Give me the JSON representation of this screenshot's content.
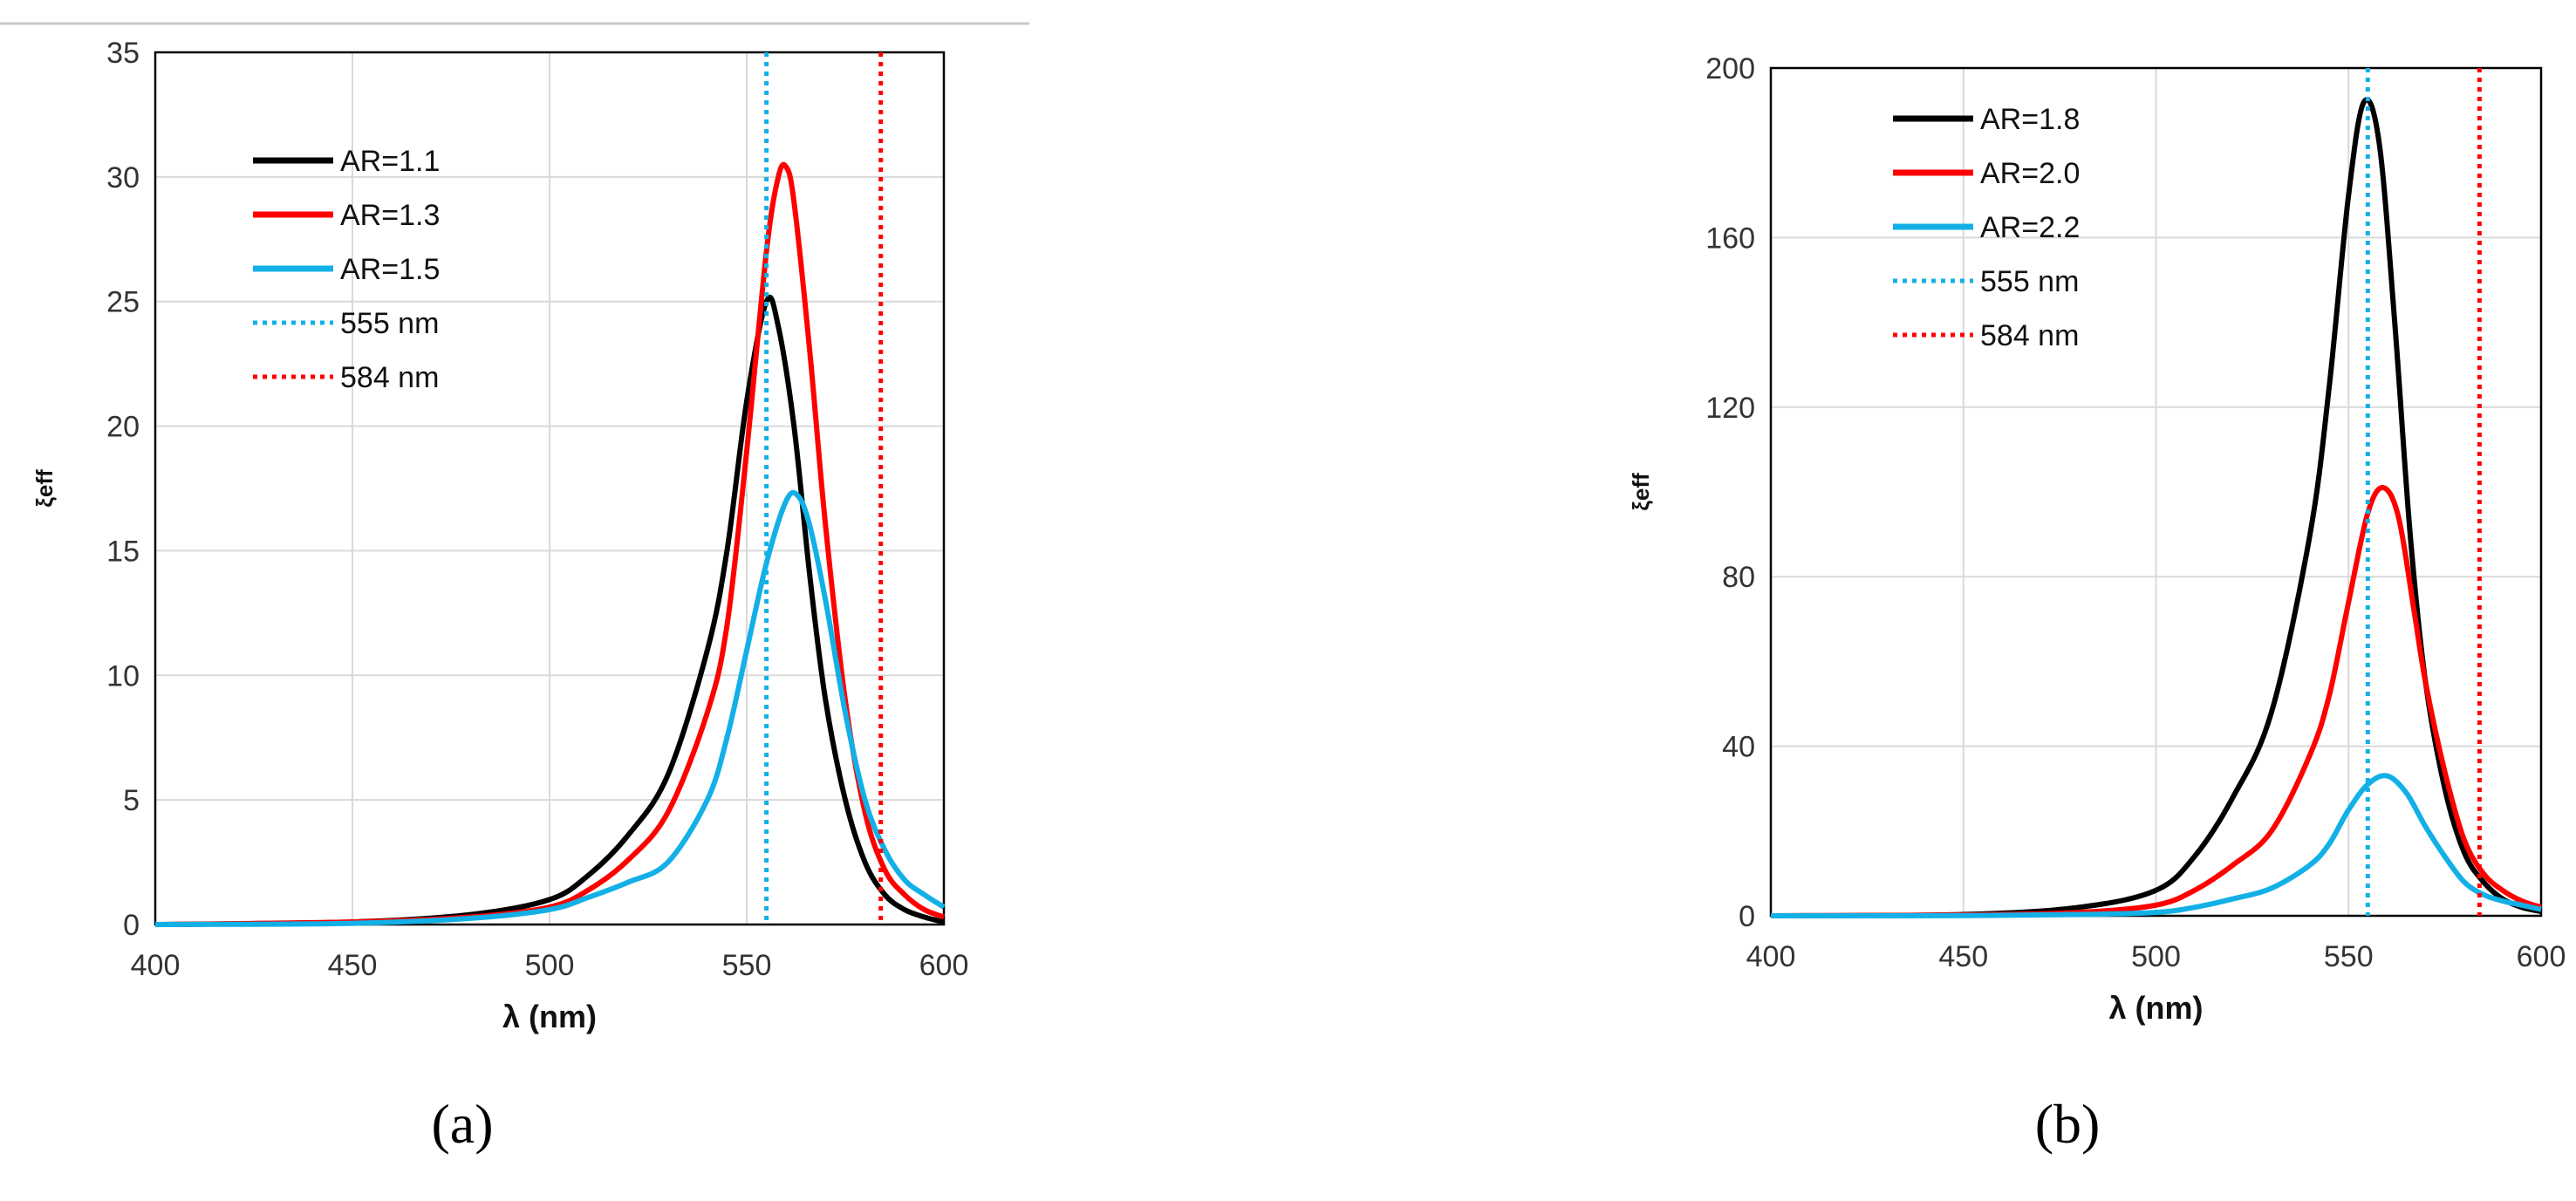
{
  "chart_data": [
    {
      "panel": "a",
      "panel_label": "(a)",
      "type": "line",
      "xlabel": "λ (nm)",
      "ylabel": "ξeff",
      "xlim": [
        400,
        600
      ],
      "ylim": [
        0,
        35
      ],
      "xticks": [
        400,
        450,
        500,
        550,
        600
      ],
      "yticks": [
        0,
        5,
        10,
        15,
        20,
        25,
        30,
        35
      ],
      "grid": true,
      "legend_position": "top-left",
      "series": [
        {
          "name": "AR=1.1",
          "color": "#000000",
          "style": "solid",
          "x": [
            400,
            450,
            480,
            500,
            510,
            520,
            530,
            540,
            545,
            550,
            555,
            558,
            562,
            566,
            570,
            575,
            580,
            585,
            590,
            595,
            600
          ],
          "y": [
            0,
            0.1,
            0.4,
            1.0,
            2.0,
            3.6,
            6.0,
            11,
            15,
            21,
            25,
            24,
            20,
            14,
            9,
            5,
            2.5,
            1.2,
            0.6,
            0.3,
            0.1
          ]
        },
        {
          "name": "AR=1.3",
          "color": "#ff0000",
          "style": "solid",
          "x": [
            400,
            450,
            480,
            500,
            510,
            520,
            530,
            540,
            545,
            550,
            555,
            558,
            560,
            562,
            566,
            570,
            575,
            580,
            585,
            590,
            595,
            600
          ],
          "y": [
            0,
            0.1,
            0.3,
            0.7,
            1.4,
            2.6,
            4.5,
            8.5,
            12,
            19,
            27,
            30,
            30.4,
            29,
            23,
            16,
            9,
            4.5,
            2.2,
            1.2,
            0.6,
            0.3
          ]
        },
        {
          "name": "AR=1.5",
          "color": "#12b0e6",
          "style": "solid",
          "x": [
            400,
            450,
            480,
            500,
            510,
            520,
            530,
            540,
            545,
            550,
            555,
            560,
            563,
            566,
            570,
            575,
            580,
            585,
            590,
            595,
            600
          ],
          "y": [
            0,
            0.05,
            0.25,
            0.6,
            1.1,
            1.7,
            2.5,
            5,
            7.5,
            11,
            14.5,
            17,
            17.2,
            16,
            13,
            8.5,
            5,
            3,
            1.8,
            1.2,
            0.7
          ]
        },
        {
          "name": "555 nm",
          "color": "#12b0e6",
          "style": "dotted",
          "vline": 555
        },
        {
          "name": "584 nm",
          "color": "#ff0000",
          "style": "dotted",
          "vline": 584
        }
      ]
    },
    {
      "panel": "b",
      "panel_label": "(b)",
      "type": "line",
      "xlabel": "λ (nm)",
      "ylabel": "ξeff",
      "xlim": [
        400,
        600
      ],
      "ylim": [
        0,
        200
      ],
      "xticks": [
        400,
        450,
        500,
        550,
        600
      ],
      "yticks": [
        0,
        40,
        80,
        120,
        160,
        200
      ],
      "grid": true,
      "legend_position": "top-left",
      "series": [
        {
          "name": "AR=1.8",
          "color": "#000000",
          "style": "solid",
          "x": [
            400,
            450,
            480,
            500,
            510,
            520,
            530,
            540,
            545,
            550,
            554,
            558,
            562,
            566,
            570,
            575,
            580,
            585,
            590,
            595,
            600
          ],
          "y": [
            0,
            0.3,
            2,
            6,
            14,
            28,
            48,
            90,
            125,
            170,
            192,
            182,
            140,
            90,
            55,
            30,
            15,
            8,
            4,
            2,
            1
          ]
        },
        {
          "name": "AR=2.0",
          "color": "#ff0000",
          "style": "solid",
          "x": [
            400,
            450,
            480,
            500,
            510,
            520,
            530,
            540,
            545,
            550,
            555,
            559,
            563,
            567,
            570,
            575,
            580,
            585,
            590,
            595,
            600
          ],
          "y": [
            0,
            0.2,
            0.8,
            2.5,
            6,
            12,
            20,
            38,
            52,
            74,
            95,
            101,
            94,
            72,
            55,
            34,
            18,
            10,
            6,
            3.5,
            2
          ]
        },
        {
          "name": "AR=2.2",
          "color": "#12b0e6",
          "style": "solid",
          "x": [
            400,
            450,
            480,
            500,
            510,
            520,
            530,
            540,
            545,
            550,
            555,
            560,
            565,
            570,
            575,
            580,
            585,
            590,
            595,
            600
          ],
          "y": [
            0,
            0.05,
            0.3,
            0.8,
            2,
            4,
            6.5,
            12,
            17,
            25,
            31,
            33,
            29,
            21,
            14,
            8,
            5,
            3.5,
            2.5,
            1.5
          ]
        },
        {
          "name": "555 nm",
          "color": "#12b0e6",
          "style": "dotted",
          "vline": 555
        },
        {
          "name": "584 nm",
          "color": "#ff0000",
          "style": "dotted",
          "vline": 584
        }
      ]
    }
  ]
}
